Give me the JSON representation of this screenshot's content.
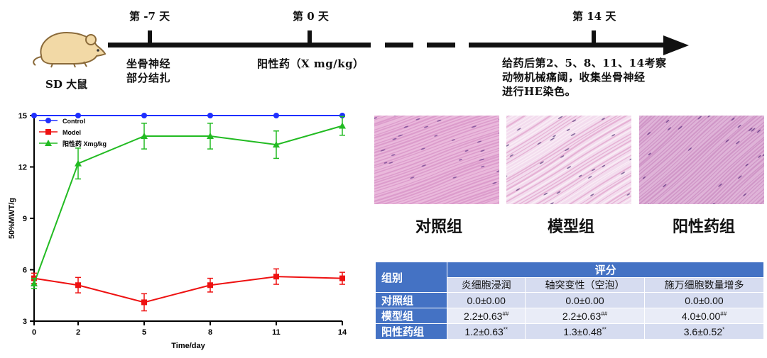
{
  "timeline": {
    "day_minus7": "第 -7 天",
    "day0": "第 0 天",
    "day14": "第 14 天",
    "rat_label": "SD 大鼠",
    "step1_line1": "坐骨神经",
    "step1_line2": "部分结扎",
    "step2": "阳性药（X mg/kg）",
    "step3_line1": "给药后第2、5、8、11、14考察",
    "step3_line2": "动物机械痛阈，收集坐骨神经",
    "step3_line3": "进行HE染色。"
  },
  "chart_data": {
    "type": "line",
    "x": [
      0,
      2,
      5,
      8,
      11,
      14
    ],
    "xlabel": "Time/day",
    "ylabel": "50%MWT/g",
    "xticks": [
      "0",
      "2",
      "5",
      "8",
      "11",
      "14"
    ],
    "yticks": [
      "3",
      "6",
      "9",
      "12",
      "15"
    ],
    "xlim": [
      0,
      14
    ],
    "ylim": [
      3,
      15
    ],
    "legend_position": "top-left",
    "series": [
      {
        "name": "Control",
        "color": "#1f2fff",
        "marker": "circle",
        "values": [
          15,
          15,
          15,
          15,
          15,
          15
        ],
        "errors": [
          0,
          0,
          0,
          0,
          0,
          0
        ]
      },
      {
        "name": "Model",
        "color": "#ee1111",
        "marker": "square",
        "values": [
          5.5,
          5.1,
          4.1,
          5.1,
          5.6,
          5.5
        ],
        "errors": [
          0.3,
          0.45,
          0.5,
          0.4,
          0.45,
          0.35
        ]
      },
      {
        "name": "阳性药 Xmg/kg",
        "color": "#22bb22",
        "marker": "triangle",
        "values": [
          5.2,
          12.2,
          13.8,
          13.8,
          13.3,
          14.4
        ],
        "errors": [
          0.3,
          0.9,
          0.75,
          0.75,
          0.8,
          0.55
        ]
      }
    ]
  },
  "histology": {
    "control_caption": "对照组",
    "model_caption": "模型组",
    "positive_caption": "阳性药组"
  },
  "score_table": {
    "group_header": "组别",
    "score_header": "评分",
    "col1": "炎细胞浸润",
    "col2": "轴突变性（空泡）",
    "col3": "施万细胞数量增多",
    "rows": [
      {
        "group": "对照组",
        "c1": "0.0±0.00",
        "c1_mark": "",
        "c2": "0.0±0.00",
        "c2_mark": "",
        "c3": "0.0±0.00",
        "c3_mark": ""
      },
      {
        "group": "模型组",
        "c1": "2.2±0.63",
        "c1_mark": "##",
        "c2": "2.2±0.63",
        "c2_mark": "##",
        "c3": "4.0±0.00",
        "c3_mark": "##"
      },
      {
        "group": "阳性药组",
        "c1": "1.2±0.63",
        "c1_mark": "**",
        "c2": "1.3±0.48",
        "c2_mark": "**",
        "c3": "3.6±0.52",
        "c3_mark": "*"
      }
    ]
  }
}
